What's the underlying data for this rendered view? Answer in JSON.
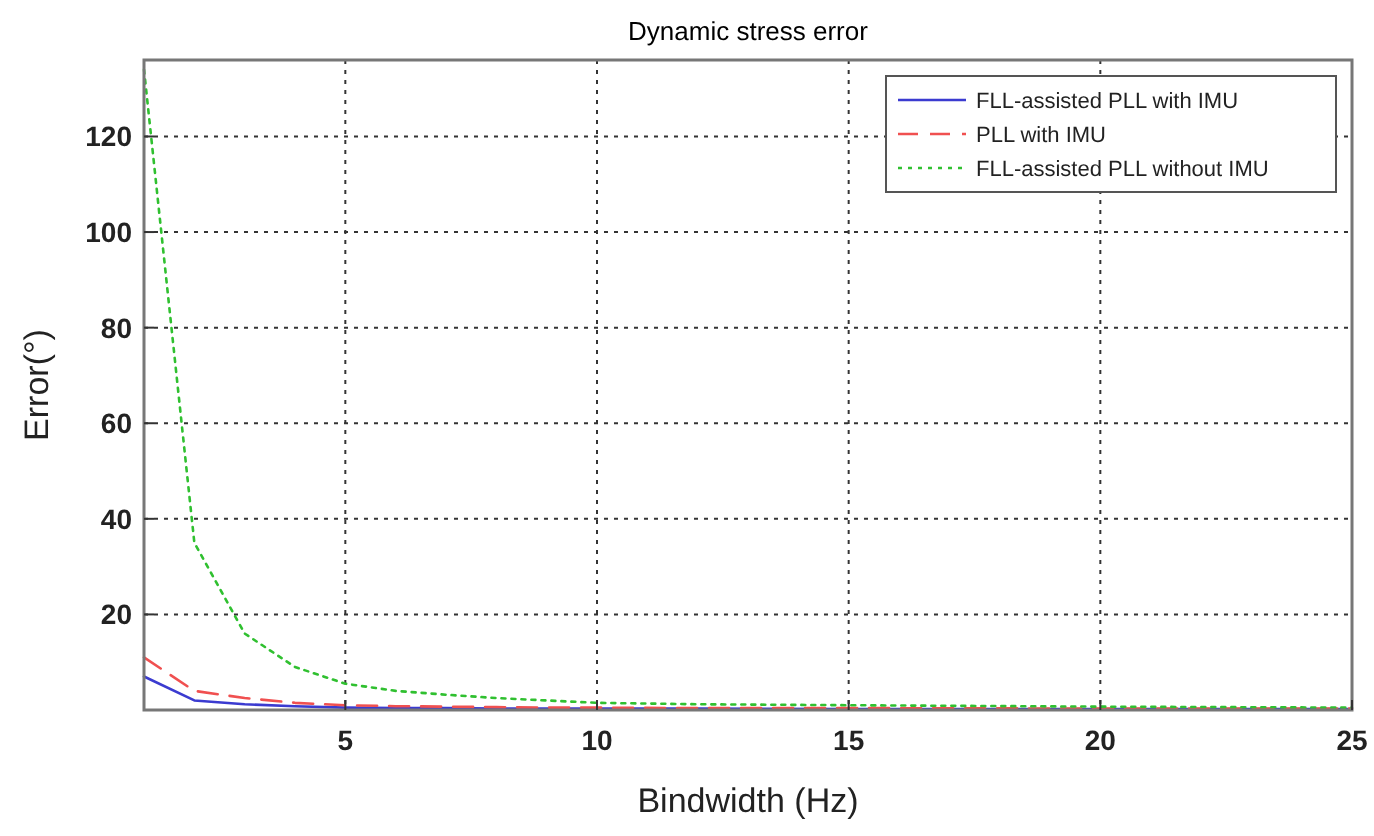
{
  "chart_data": {
    "type": "line",
    "title": "Dynamic stress error",
    "xlabel": "Bindwidth (Hz)",
    "ylabel": "Error(°)",
    "x": [
      1,
      2,
      3,
      4,
      5,
      6,
      7,
      8,
      9,
      10,
      12,
      15,
      20,
      25
    ],
    "series": [
      {
        "name": "FLL-assisted PLL with IMU",
        "color": "#3b3bd0",
        "line_style": "solid",
        "values": [
          7,
          2,
          1.2,
          0.8,
          0.5,
          0.4,
          0.4,
          0.3,
          0.3,
          0.3,
          0.3,
          0.2,
          0.2,
          0.2
        ]
      },
      {
        "name": "PLL with IMU",
        "color": "#f05050",
        "line_style": "dashed",
        "values": [
          11,
          4,
          2.5,
          1.5,
          1,
          0.8,
          0.7,
          0.6,
          0.5,
          0.5,
          0.4,
          0.4,
          0.3,
          0.3
        ]
      },
      {
        "name": "FLL-assisted PLL without IMU",
        "color": "#30c030",
        "line_style": "dotted",
        "values": [
          134,
          35,
          16,
          9,
          5.5,
          4,
          3.2,
          2.5,
          2,
          1.5,
          1.2,
          1,
          0.7,
          0.5
        ]
      }
    ],
    "xlim": [
      1,
      25
    ],
    "ylim": [
      0,
      136
    ],
    "xticks": [
      5,
      10,
      15,
      20,
      25
    ],
    "yticks": [
      20,
      40,
      60,
      80,
      100,
      120
    ],
    "grid": true,
    "legend": "top right",
    "marker": "none"
  }
}
